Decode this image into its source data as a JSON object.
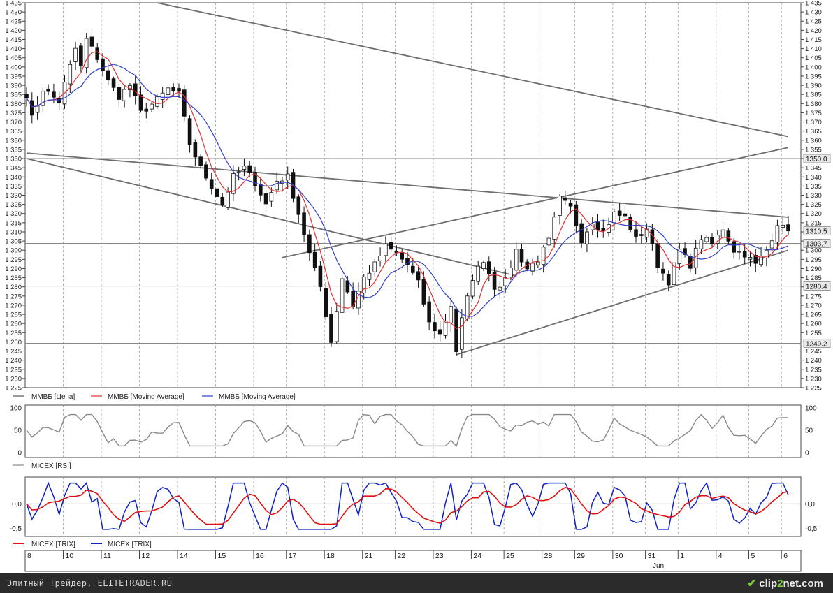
{
  "chart_data": [
    {
      "type": "candlestick",
      "title": "",
      "ylim": [
        1225,
        1435
      ],
      "yticks": [
        1225,
        1230,
        1235,
        1240,
        1245,
        1250,
        1255,
        1260,
        1265,
        1270,
        1275,
        1280,
        1285,
        1290,
        1295,
        1300,
        1305,
        1310,
        1315,
        1320,
        1325,
        1330,
        1335,
        1340,
        1345,
        1350,
        1355,
        1360,
        1365,
        1370,
        1375,
        1380,
        1385,
        1390,
        1395,
        1400,
        1405,
        1410,
        1415,
        1420,
        1425,
        1430,
        1435
      ],
      "ytick_labels": [
        "1 225",
        "1 230",
        "1 235",
        "1 240",
        "1 245",
        "1 250",
        "1 255",
        "1 260",
        "1 265",
        "1 270",
        "1 275",
        "1 280",
        "1 285",
        "1 290",
        "1 295",
        "1 300",
        "1 305",
        "1 310",
        "1 315",
        "1 320",
        "1 325",
        "1 330",
        "1 335",
        "1 340",
        "1 345",
        "1 350",
        "1 355",
        "1 360",
        "1 365",
        "1 370",
        "1 375",
        "1 380",
        "1 385",
        "1 390",
        "1 395",
        "1 400",
        "1 405",
        "1 410",
        "1 415",
        "1 420",
        "1 425",
        "1 430",
        "1 435"
      ],
      "price_tags": [
        {
          "label": "1350.0",
          "value": 1350.0
        },
        {
          "label": "1310.5",
          "value": 1310.5
        },
        {
          "label": "1303.7",
          "value": 1303.7
        },
        {
          "label": "1280.4",
          "value": 1280.4
        },
        {
          "label": "1249.2",
          "value": 1249.2
        }
      ],
      "horizontal_levels": [
        1350.0,
        1303.7,
        1280.4,
        1249.2
      ],
      "price_path": [
        [
          0,
          1385
        ],
        [
          1,
          1372
        ],
        [
          3,
          1388
        ],
        [
          6,
          1381
        ],
        [
          9,
          1410
        ],
        [
          10,
          1400
        ],
        [
          11,
          1415
        ],
        [
          13,
          1405
        ],
        [
          15,
          1392
        ],
        [
          17,
          1384
        ],
        [
          19,
          1390
        ],
        [
          21,
          1375
        ],
        [
          24,
          1382
        ],
        [
          26,
          1388
        ],
        [
          28,
          1385
        ],
        [
          30,
          1358
        ],
        [
          32,
          1345
        ],
        [
          34,
          1335
        ],
        [
          36,
          1325
        ],
        [
          38,
          1340
        ],
        [
          40,
          1345
        ],
        [
          42,
          1337
        ],
        [
          44,
          1325
        ],
        [
          46,
          1338
        ],
        [
          48,
          1340
        ],
        [
          50,
          1320
        ],
        [
          52,
          1298
        ],
        [
          54,
          1280
        ],
        [
          56,
          1250
        ],
        [
          58,
          1285
        ],
        [
          60,
          1270
        ],
        [
          62,
          1285
        ],
        [
          64,
          1292
        ],
        [
          66,
          1302
        ],
        [
          68,
          1298
        ],
        [
          70,
          1292
        ],
        [
          72,
          1282
        ],
        [
          74,
          1260
        ],
        [
          76,
          1254
        ],
        [
          78,
          1270
        ],
        [
          79,
          1245
        ],
        [
          80,
          1262
        ],
        [
          82,
          1285
        ],
        [
          84,
          1295
        ],
        [
          86,
          1280
        ],
        [
          88,
          1283
        ],
        [
          90,
          1300
        ],
        [
          92,
          1290
        ],
        [
          94,
          1295
        ],
        [
          96,
          1305
        ],
        [
          98,
          1328
        ],
        [
          100,
          1323
        ],
        [
          102,
          1306
        ],
        [
          104,
          1316
        ],
        [
          106,
          1310
        ],
        [
          108,
          1320
        ],
        [
          110,
          1318
        ],
        [
          112,
          1306
        ],
        [
          114,
          1312
        ],
        [
          116,
          1292
        ],
        [
          118,
          1283
        ],
        [
          120,
          1300
        ],
        [
          122,
          1292
        ],
        [
          124,
          1307
        ],
        [
          126,
          1303
        ],
        [
          128,
          1312
        ],
        [
          130,
          1300
        ],
        [
          132,
          1298
        ],
        [
          134,
          1292
        ],
        [
          136,
          1300
        ],
        [
          137,
          1307
        ],
        [
          138,
          1315
        ],
        [
          139,
          1312
        ],
        [
          140,
          1310.5
        ]
      ],
      "candles_count": 141,
      "series": [
        {
          "name": "ММВБ [Цена]",
          "color": "#555555"
        },
        {
          "name": "ММВБ [Moving Average]",
          "color": "#e03030",
          "period": 5
        },
        {
          "name": "ММВБ [Moving Average]",
          "color": "#2f3fc8",
          "period": 10
        }
      ],
      "trendlines": [
        {
          "from": [
            24,
            1435
          ],
          "to": [
            140,
            1362
          ]
        },
        {
          "from": [
            0,
            1353
          ],
          "to": [
            140,
            1318
          ]
        },
        {
          "from": [
            0,
            1350
          ],
          "to": [
            90,
            1286
          ]
        },
        {
          "from": [
            47,
            1296
          ],
          "to": [
            140,
            1356
          ]
        },
        {
          "from": [
            79,
            1243
          ],
          "to": [
            140,
            1300
          ]
        }
      ]
    },
    {
      "type": "line",
      "series": [
        {
          "name": "MICEX [RSI]",
          "color": "#888888"
        }
      ],
      "ylim": [
        0,
        100
      ],
      "yticks": [
        0,
        50,
        100
      ],
      "ytick_labels": [
        "0",
        "50",
        "100"
      ]
    },
    {
      "type": "line",
      "series": [
        {
          "name": "MICEX [TRIX]",
          "color": "#e01010"
        },
        {
          "name": "MICEX [TRIX]",
          "color": "#1020c8"
        }
      ],
      "ylim": [
        -0.62,
        0.5
      ],
      "yticks": [
        0.0,
        -0.5
      ],
      "ytick_labels": [
        "0,0",
        "-0,5"
      ]
    }
  ],
  "x_axis": {
    "labels": [
      "8",
      "10",
      "11",
      "12",
      "14",
      "15",
      "16",
      "17",
      "18",
      "21",
      "22",
      "23",
      "24",
      "25",
      "28",
      "29",
      "30",
      "31",
      "1",
      "4",
      "5",
      "6"
    ],
    "label_index": [
      0,
      7,
      14,
      21,
      28,
      35,
      42,
      48,
      55,
      62,
      68,
      75,
      82,
      88,
      95,
      101,
      108,
      114,
      120,
      127,
      133,
      139
    ],
    "month_label": "Jun"
  },
  "footer": {
    "left_text": "Элитный Трейдер, ELITETRADER.RU",
    "logo_text_1": "clip",
    "logo_text_2": "2",
    "logo_text_3": "net",
    "logo_text_4": ".com"
  }
}
